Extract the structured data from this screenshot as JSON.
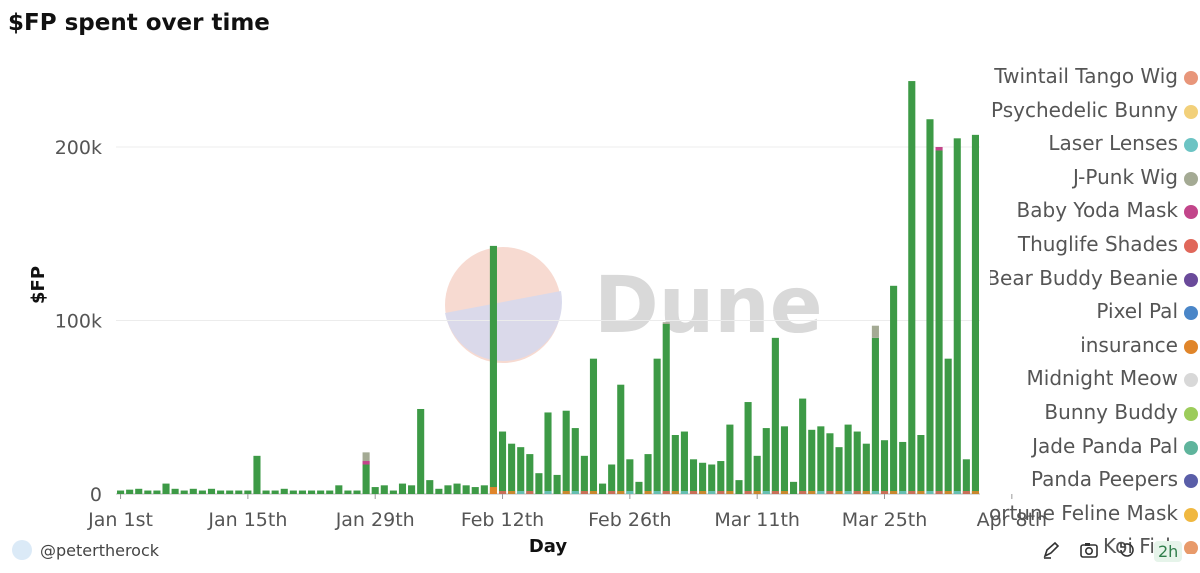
{
  "title": "$FP spent over time",
  "user": {
    "handle": "@petertherock"
  },
  "toolbar": {
    "refresh_badge": "2h"
  },
  "watermark": {
    "text": "Dune"
  },
  "chart_data": {
    "type": "bar",
    "stacked": true,
    "xlabel": "Day",
    "ylabel": "$FP",
    "ylim": [
      0,
      240000
    ],
    "yticks": [
      0,
      100000,
      200000
    ],
    "ytick_labels": [
      "0",
      "100k",
      "200k"
    ],
    "xtick_labels": [
      "Jan 1st",
      "Jan 15th",
      "Jan 29th",
      "Feb 12th",
      "Feb 26th",
      "Mar 11th",
      "Mar 25th",
      "Apr 8th"
    ],
    "xtick_day_index": [
      0,
      14,
      28,
      42,
      56,
      70,
      84,
      98
    ],
    "start_date": "Jan 1st",
    "grid": true,
    "legend": "right",
    "legend_entries": [
      {
        "name": "Twintail Tango Wig",
        "color": "#e8967a"
      },
      {
        "name": "Psychedelic Bunny",
        "color": "#f2d07a"
      },
      {
        "name": "Laser Lenses",
        "color": "#6cc4c4"
      },
      {
        "name": "J-Punk Wig",
        "color": "#a4aa94"
      },
      {
        "name": "Baby Yoda Mask",
        "color": "#c2458a"
      },
      {
        "name": "Thuglife Shades",
        "color": "#e0675a"
      },
      {
        "name": "Bear Buddy Beanie",
        "color": "#6a4a9a"
      },
      {
        "name": "Pixel Pal",
        "color": "#4a86c8"
      },
      {
        "name": "insurance",
        "color": "#e0852a"
      },
      {
        "name": "Midnight Meow",
        "color": "#d8d8d8"
      },
      {
        "name": "Bunny Buddy",
        "color": "#9ccc5a"
      },
      {
        "name": "Jade Panda Pal",
        "color": "#5fb49c"
      },
      {
        "name": "Panda Peepers",
        "color": "#5a5ea8"
      },
      {
        "name": "Fortune Feline Mask",
        "color": "#f0b840"
      },
      {
        "name": "Koi Fish",
        "color": "#e89a6a"
      }
    ],
    "main_series_color": "#3d9a46",
    "totals": [
      2000,
      2500,
      3000,
      2000,
      2000,
      6000,
      3000,
      2000,
      3000,
      2000,
      3000,
      2000,
      2000,
      2000,
      2000,
      22000,
      2000,
      2000,
      3000,
      2000,
      2000,
      2000,
      2000,
      2000,
      5000,
      2000,
      2000,
      17000,
      4000,
      5000,
      2000,
      6000,
      5000,
      49000,
      8000,
      3000,
      5000,
      6000,
      5000,
      4000,
      5000,
      143000,
      36000,
      29000,
      27000,
      23000,
      12000,
      47000,
      11000,
      48000,
      38000,
      22000,
      78000,
      6000,
      17000,
      63000,
      20000,
      7000,
      23000,
      78000,
      98000,
      34000,
      36000,
      20000,
      18000,
      17000,
      19000,
      40000,
      8000,
      53000,
      22000,
      38000,
      90000,
      39000,
      7000,
      55000,
      37000,
      39000,
      35000,
      27000,
      40000,
      36000,
      29000,
      90000,
      31000,
      120000,
      30000,
      238000,
      34000,
      216000,
      198000,
      78000,
      205000,
      20000,
      207000
    ],
    "highlight_segments": [
      {
        "day": 41,
        "color": "#e0852a",
        "value": 4000
      },
      {
        "day": 27,
        "color": "#a4aa94",
        "value": 7000
      },
      {
        "day": 27,
        "color": "#c2458a",
        "value": 2000
      },
      {
        "day": 83,
        "color": "#a4aa94",
        "value": 7000
      },
      {
        "day": 90,
        "color": "#c2458a",
        "value": 2000
      },
      {
        "day": 60,
        "color": "#a4aa94",
        "value": 1000
      }
    ]
  }
}
